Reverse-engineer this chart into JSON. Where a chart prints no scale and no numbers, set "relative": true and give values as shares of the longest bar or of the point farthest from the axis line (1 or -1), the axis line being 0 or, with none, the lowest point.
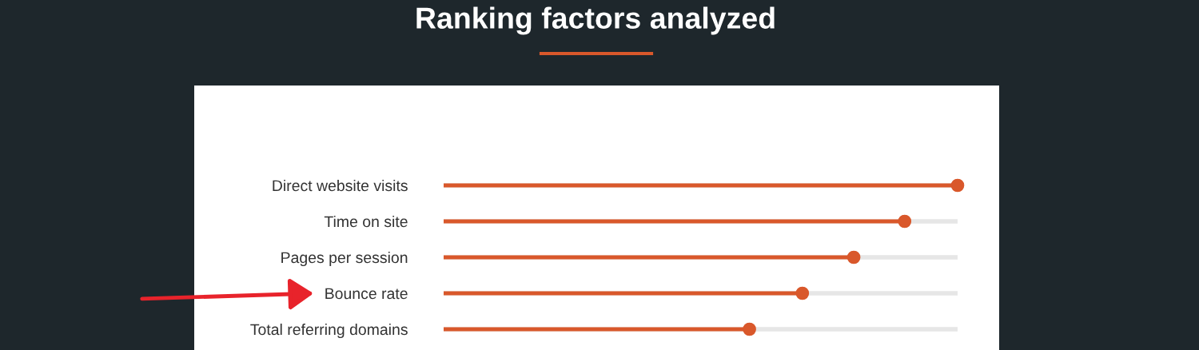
{
  "chart_data": {
    "type": "lollipop",
    "orientation": "horizontal",
    "relative": true,
    "title": "Ranking factors analyzed",
    "categories": [
      "Direct website visits",
      "Time on site",
      "Pages per session",
      "Bounce rate",
      "Total referring domains"
    ],
    "values": [
      1,
      0.897,
      0.798,
      0.698,
      0.595
    ],
    "color": "#d9582b",
    "marker": "circle",
    "grid": "y"
  }
}
